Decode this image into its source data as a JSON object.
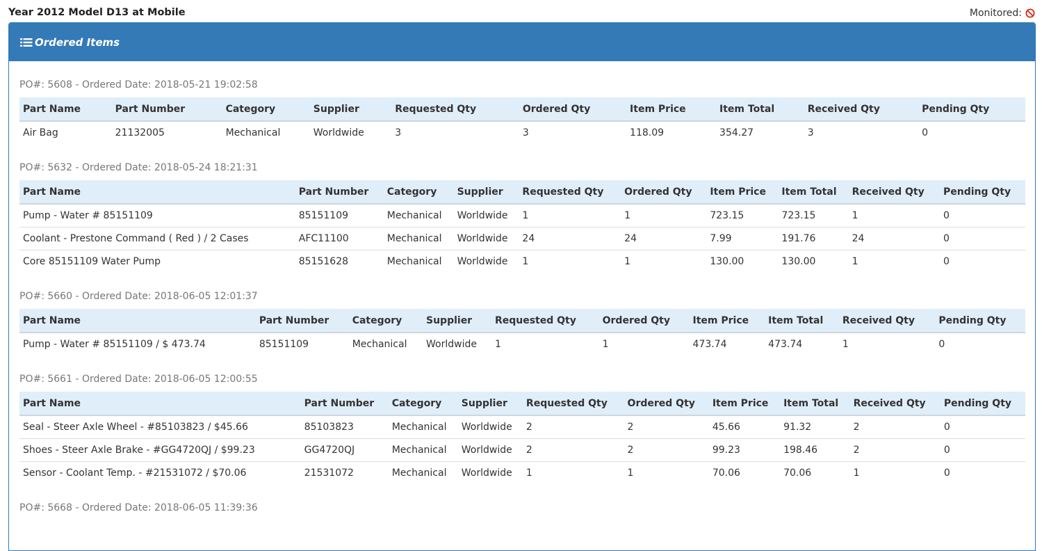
{
  "header": {
    "title": "Year 2012 Model D13 at Mobile",
    "monitored_label": "Monitored:",
    "monitored_icon": "no-entry-icon",
    "monitored_icon_color": "#d9261c"
  },
  "panel": {
    "title": "Ordered Items",
    "icon": "list-icon",
    "color": "#337ab7"
  },
  "columns": [
    "Part Name",
    "Part Number",
    "Category",
    "Supplier",
    "Requested Qty",
    "Ordered Qty",
    "Item Price",
    "Item Total",
    "Received Qty",
    "Pending Qty"
  ],
  "orders": [
    {
      "header": "PO#: 5608 - Ordered Date: 2018-05-21 19:02:58",
      "rows": [
        [
          "Air Bag",
          "21132005",
          "Mechanical",
          "Worldwide",
          "3",
          "3",
          "118.09",
          "354.27",
          "3",
          "0"
        ]
      ]
    },
    {
      "header": "PO#: 5632 - Ordered Date: 2018-05-24 18:21:31",
      "rows": [
        [
          "Pump - Water # 85151109",
          "85151109",
          "Mechanical",
          "Worldwide",
          "1",
          "1",
          "723.15",
          "723.15",
          "1",
          "0"
        ],
        [
          "Coolant - Prestone Command ( Red ) / 2 Cases",
          "AFC11100",
          "Mechanical",
          "Worldwide",
          "24",
          "24",
          "7.99",
          "191.76",
          "24",
          "0"
        ],
        [
          "Core 85151109 Water Pump",
          "85151628",
          "Mechanical",
          "Worldwide",
          "1",
          "1",
          "130.00",
          "130.00",
          "1",
          "0"
        ]
      ]
    },
    {
      "header": "PO#: 5660 - Ordered Date: 2018-06-05 12:01:37",
      "rows": [
        [
          "Pump - Water # 85151109 / $ 473.74",
          "85151109",
          "Mechanical",
          "Worldwide",
          "1",
          "1",
          "473.74",
          "473.74",
          "1",
          "0"
        ]
      ]
    },
    {
      "header": "PO#: 5661 - Ordered Date: 2018-06-05 12:00:55",
      "rows": [
        [
          "Seal - Steer Axle Wheel - #85103823 / $45.66",
          "85103823",
          "Mechanical",
          "Worldwide",
          "2",
          "2",
          "45.66",
          "91.32",
          "2",
          "0"
        ],
        [
          "Shoes - Steer Axle Brake - #GG4720QJ / $99.23",
          "GG4720QJ",
          "Mechanical",
          "Worldwide",
          "2",
          "2",
          "99.23",
          "198.46",
          "2",
          "0"
        ],
        [
          "Sensor - Coolant Temp. - #21531072 / $70.06",
          "21531072",
          "Mechanical",
          "Worldwide",
          "1",
          "1",
          "70.06",
          "70.06",
          "1",
          "0"
        ]
      ]
    },
    {
      "header": "PO#: 5668 - Ordered Date: 2018-06-05 11:39:36",
      "rows": []
    }
  ]
}
